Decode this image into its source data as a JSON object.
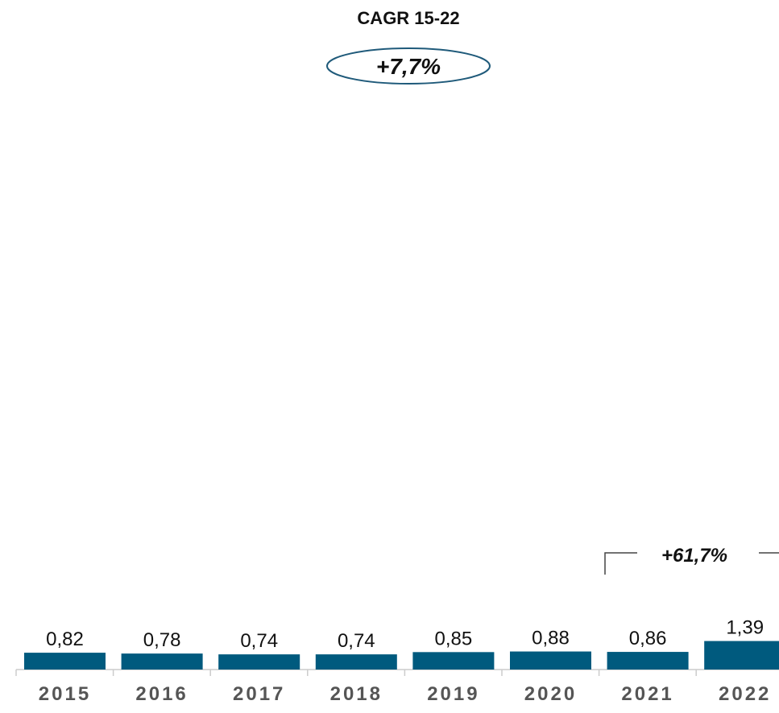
{
  "chart_data": {
    "type": "bar",
    "title": "CAGR 15-22",
    "annotations": [
      "+7,7%",
      "+61,7%"
    ],
    "categories": [
      "2015",
      "2016",
      "2017",
      "2018",
      "2019",
      "2020",
      "2021",
      "2022"
    ],
    "values": [
      0.82,
      0.78,
      0.74,
      0.74,
      0.85,
      0.88,
      0.86,
      1.39
    ],
    "value_labels": [
      "0,82",
      "0,78",
      "0,74",
      "0,74",
      "0,85",
      "0,88",
      "0,86",
      "1,39"
    ],
    "color": "#005a7e"
  }
}
